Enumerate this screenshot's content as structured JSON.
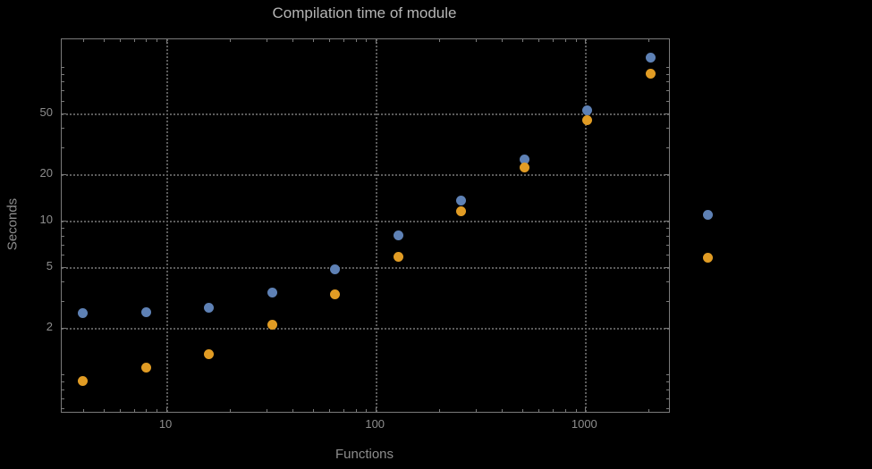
{
  "colors": {
    "background": "#000000",
    "frame": "#7a7a7a",
    "grid": "#5c5c5c",
    "title_text": "#b5b5b5",
    "axis_text": "#8d8d8d",
    "series_blue": "#5e81b5",
    "series_orange": "#e19c24"
  },
  "chart_data": {
    "type": "scatter",
    "title": "Compilation time of module",
    "xlabel": "Functions",
    "ylabel": "Seconds",
    "x_scale": "log",
    "y_scale": "log",
    "xlim": [
      3.162,
      2512
    ],
    "ylim": [
      0.57,
      151
    ],
    "grid": "dotted lines at major ticks only",
    "x_ticks": [
      {
        "value": 10,
        "label": "10"
      },
      {
        "value": 100,
        "label": "100"
      },
      {
        "value": 1000,
        "label": "1000"
      }
    ],
    "y_ticks": [
      {
        "value": 2,
        "label": "2"
      },
      {
        "value": 5,
        "label": "5"
      },
      {
        "value": 10,
        "label": "10"
      },
      {
        "value": 20,
        "label": "20"
      },
      {
        "value": 50,
        "label": "50"
      }
    ],
    "x": [
      4,
      8,
      16,
      32,
      64,
      128,
      256,
      512,
      1024,
      2048
    ],
    "series": [
      {
        "name": "blue",
        "color": "#5e81b5",
        "values": [
          2.5,
          2.55,
          2.7,
          3.4,
          4.8,
          8,
          13.5,
          25,
          52,
          115
        ]
      },
      {
        "name": "orange",
        "color": "#e19c24",
        "values": [
          0.9,
          1.1,
          1.35,
          2.1,
          3.3,
          5.8,
          11.5,
          22,
          45,
          90
        ]
      }
    ],
    "legend": {
      "position": "right-outside",
      "items": [
        {
          "color": "#5e81b5"
        },
        {
          "color": "#e19c24"
        }
      ]
    }
  }
}
